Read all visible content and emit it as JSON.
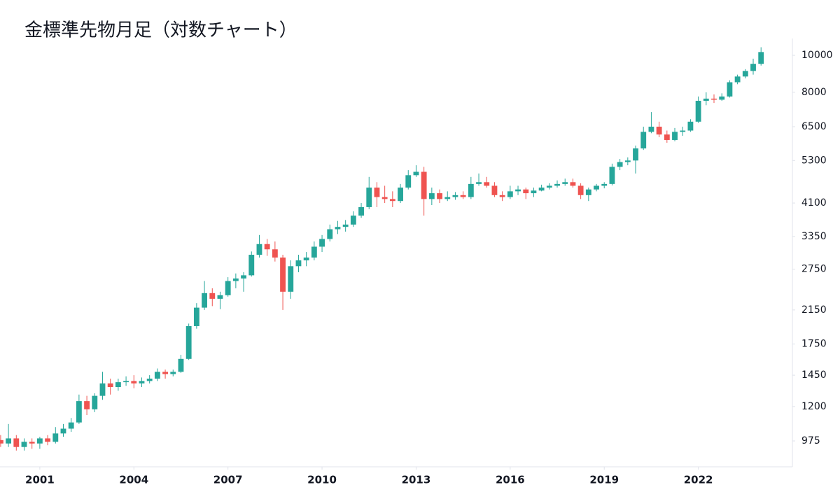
{
  "chart_data": {
    "type": "candlestick",
    "title": "金標準先物月足（対数チャート）",
    "x": [
      1999.75,
      2000.0,
      2000.25,
      2000.5,
      2000.75,
      2001.0,
      2001.25,
      2001.5,
      2001.75,
      2002.0,
      2002.25,
      2002.5,
      2002.75,
      2003.0,
      2003.25,
      2003.5,
      2003.75,
      2004.0,
      2004.25,
      2004.5,
      2004.75,
      2005.0,
      2005.25,
      2005.5,
      2005.75,
      2006.0,
      2006.25,
      2006.5,
      2006.75,
      2007.0,
      2007.25,
      2007.5,
      2007.75,
      2008.0,
      2008.25,
      2008.5,
      2008.75,
      2009.0,
      2009.25,
      2009.5,
      2009.75,
      2010.0,
      2010.25,
      2010.5,
      2010.75,
      2011.0,
      2011.25,
      2011.5,
      2011.75,
      2012.0,
      2012.25,
      2012.5,
      2012.75,
      2013.0,
      2013.25,
      2013.5,
      2013.75,
      2014.0,
      2014.25,
      2014.5,
      2014.75,
      2015.0,
      2015.25,
      2015.5,
      2015.75,
      2016.0,
      2016.25,
      2016.5,
      2016.75,
      2017.0,
      2017.25,
      2017.5,
      2017.75,
      2018.0,
      2018.25,
      2018.5,
      2018.75,
      2019.0,
      2019.25,
      2019.5,
      2019.75,
      2020.0,
      2020.25,
      2020.5,
      2020.75,
      2021.0,
      2021.25,
      2021.5,
      2021.75,
      2022.0,
      2022.25,
      2022.5,
      2022.75,
      2023.0,
      2023.25,
      2023.5,
      2023.75,
      2024.0
    ],
    "open": [
      980,
      960,
      990,
      940,
      970,
      960,
      990,
      970,
      1020,
      1050,
      1090,
      1240,
      1180,
      1280,
      1380,
      1350,
      1390,
      1400,
      1380,
      1400,
      1420,
      1480,
      1460,
      1480,
      1600,
      1950,
      2180,
      2380,
      2300,
      2350,
      2560,
      2600,
      2650,
      3000,
      3200,
      3100,
      2950,
      2400,
      2800,
      2900,
      2950,
      3150,
      3300,
      3500,
      3550,
      3600,
      3800,
      4000,
      4500,
      4250,
      4200,
      4150,
      4500,
      4850,
      4950,
      4200,
      4350,
      4200,
      4250,
      4300,
      4250,
      4600,
      4650,
      4550,
      4300,
      4250,
      4400,
      4450,
      4350,
      4420,
      4500,
      4550,
      4600,
      4650,
      4550,
      4300,
      4450,
      4550,
      4600,
      5100,
      5250,
      5300,
      5700,
      6300,
      6500,
      6200,
      6000,
      6300,
      6350,
      6700,
      7600,
      7700,
      7650,
      7800,
      8500,
      8800,
      9100,
      9500
    ],
    "high": [
      1010,
      1080,
      1010,
      990,
      990,
      1000,
      1010,
      1060,
      1080,
      1120,
      1290,
      1280,
      1300,
      1480,
      1420,
      1420,
      1440,
      1450,
      1430,
      1450,
      1510,
      1500,
      1500,
      1640,
      1980,
      2240,
      2560,
      2450,
      2400,
      2620,
      2680,
      2700,
      3060,
      3380,
      3300,
      3250,
      3000,
      2900,
      3000,
      3050,
      3250,
      3380,
      3600,
      3680,
      3700,
      3900,
      4100,
      4800,
      4650,
      4550,
      4400,
      4600,
      5000,
      5150,
      5100,
      4500,
      4450,
      4400,
      4380,
      4400,
      4800,
      4900,
      4800,
      4650,
      4400,
      4550,
      4550,
      4500,
      4500,
      4580,
      4620,
      4700,
      4750,
      4750,
      4620,
      4500,
      4600,
      4650,
      5200,
      5350,
      5400,
      5800,
      6500,
      7100,
      6700,
      6350,
      6450,
      6500,
      6800,
      7800,
      8000,
      7900,
      7950,
      8600,
      8900,
      9200,
      9800,
      10500
    ],
    "low": [
      940,
      940,
      920,
      920,
      930,
      930,
      950,
      960,
      1000,
      1030,
      1080,
      1140,
      1160,
      1250,
      1290,
      1320,
      1360,
      1340,
      1350,
      1380,
      1400,
      1420,
      1440,
      1470,
      1590,
      1920,
      2150,
      2200,
      2160,
      2330,
      2450,
      2400,
      2630,
      2950,
      2980,
      2880,
      2150,
      2300,
      2700,
      2800,
      2900,
      3050,
      3250,
      3400,
      3450,
      3550,
      3750,
      3950,
      4000,
      4100,
      4000,
      4100,
      4450,
      4800,
      3800,
      4050,
      4100,
      4150,
      4180,
      4200,
      4200,
      4550,
      4500,
      4250,
      4150,
      4200,
      4300,
      4200,
      4250,
      4400,
      4450,
      4500,
      4550,
      4500,
      4200,
      4150,
      4400,
      4480,
      4560,
      5000,
      5150,
      4900,
      5650,
      6250,
      6100,
      5900,
      5950,
      6150,
      6300,
      6650,
      7400,
      7500,
      7600,
      7750,
      8400,
      8700,
      8900,
      9400
    ],
    "close": [
      960,
      990,
      940,
      970,
      960,
      990,
      970,
      1020,
      1050,
      1090,
      1240,
      1180,
      1280,
      1380,
      1350,
      1390,
      1400,
      1380,
      1400,
      1420,
      1480,
      1460,
      1480,
      1600,
      1950,
      2180,
      2380,
      2300,
      2350,
      2560,
      2600,
      2650,
      3000,
      3200,
      3100,
      2950,
      2400,
      2800,
      2900,
      2950,
      3150,
      3300,
      3500,
      3550,
      3600,
      3800,
      4000,
      4500,
      4250,
      4200,
      4150,
      4500,
      4850,
      4950,
      4200,
      4350,
      4200,
      4250,
      4300,
      4250,
      4600,
      4650,
      4550,
      4300,
      4250,
      4400,
      4450,
      4350,
      4420,
      4500,
      4550,
      4600,
      4650,
      4550,
      4300,
      4450,
      4550,
      4600,
      5100,
      5250,
      5300,
      5700,
      6300,
      6500,
      6200,
      6000,
      6300,
      6350,
      6700,
      7600,
      7700,
      7650,
      7800,
      8500,
      8800,
      9100,
      9500,
      10200
    ],
    "up_color": "#26a69a",
    "down_color": "#ef5350",
    "xlim": [
      1999.73,
      2025.0
    ],
    "xticks": [
      2001,
      2004,
      2007,
      2010,
      2013,
      2016,
      2019,
      2022
    ],
    "ylim": [
      834,
      11070
    ],
    "log_y": true,
    "yticks": [
      975,
      1200,
      1450,
      1750,
      2150,
      2750,
      3350,
      4100,
      5300,
      6500,
      8000,
      10000
    ],
    "grid": false
  }
}
